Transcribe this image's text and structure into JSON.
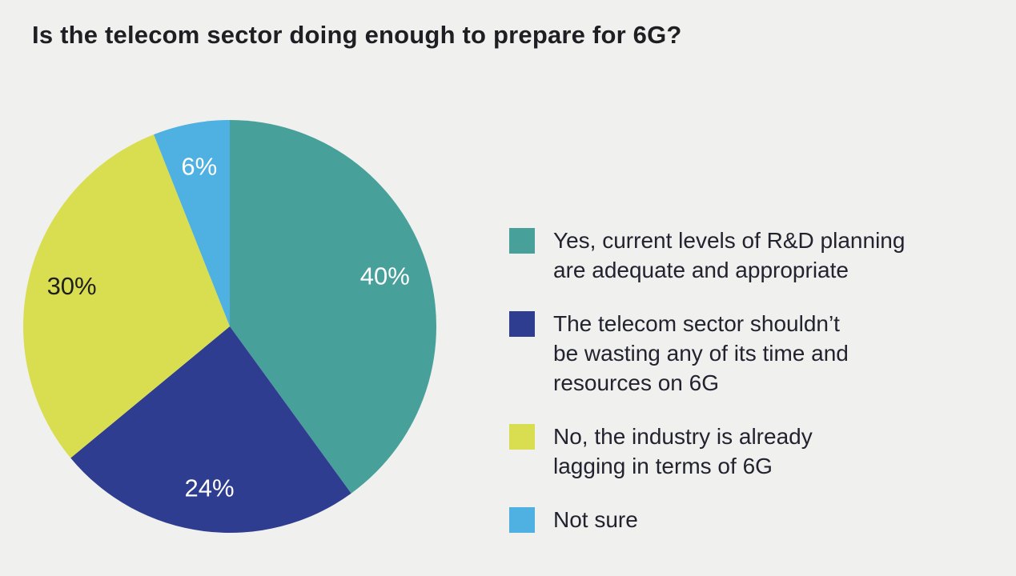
{
  "page": {
    "background_color": "#f0f0ee",
    "title_color": "#1f1f23",
    "legend_text_color": "#232330"
  },
  "chart_data": {
    "type": "pie",
    "title": "Is the telecom sector doing enough to prepare for 6G?",
    "direction": "clockwise",
    "start_angle_deg": 0,
    "legend_position": "right",
    "slices": [
      {
        "label": "Yes, current levels of R&D planning\nare adequate and appropriate",
        "value": 40,
        "display": "40%",
        "color": "#47a09a",
        "label_color": "#ffffff"
      },
      {
        "label": "The telecom sector shouldn’t\nbe wasting any of its time and\nresources on 6G",
        "value": 24,
        "display": "24%",
        "color": "#2e3d8f",
        "label_color": "#ffffff"
      },
      {
        "label": "No, the industry is already\nlagging in terms of 6G",
        "value": 30,
        "display": "30%",
        "color": "#d9de51",
        "label_color": "#1f1f1f"
      },
      {
        "label": "Not sure",
        "value": 6,
        "display": "6%",
        "color": "#4fb0e2",
        "label_color": "#ffffff"
      }
    ]
  }
}
